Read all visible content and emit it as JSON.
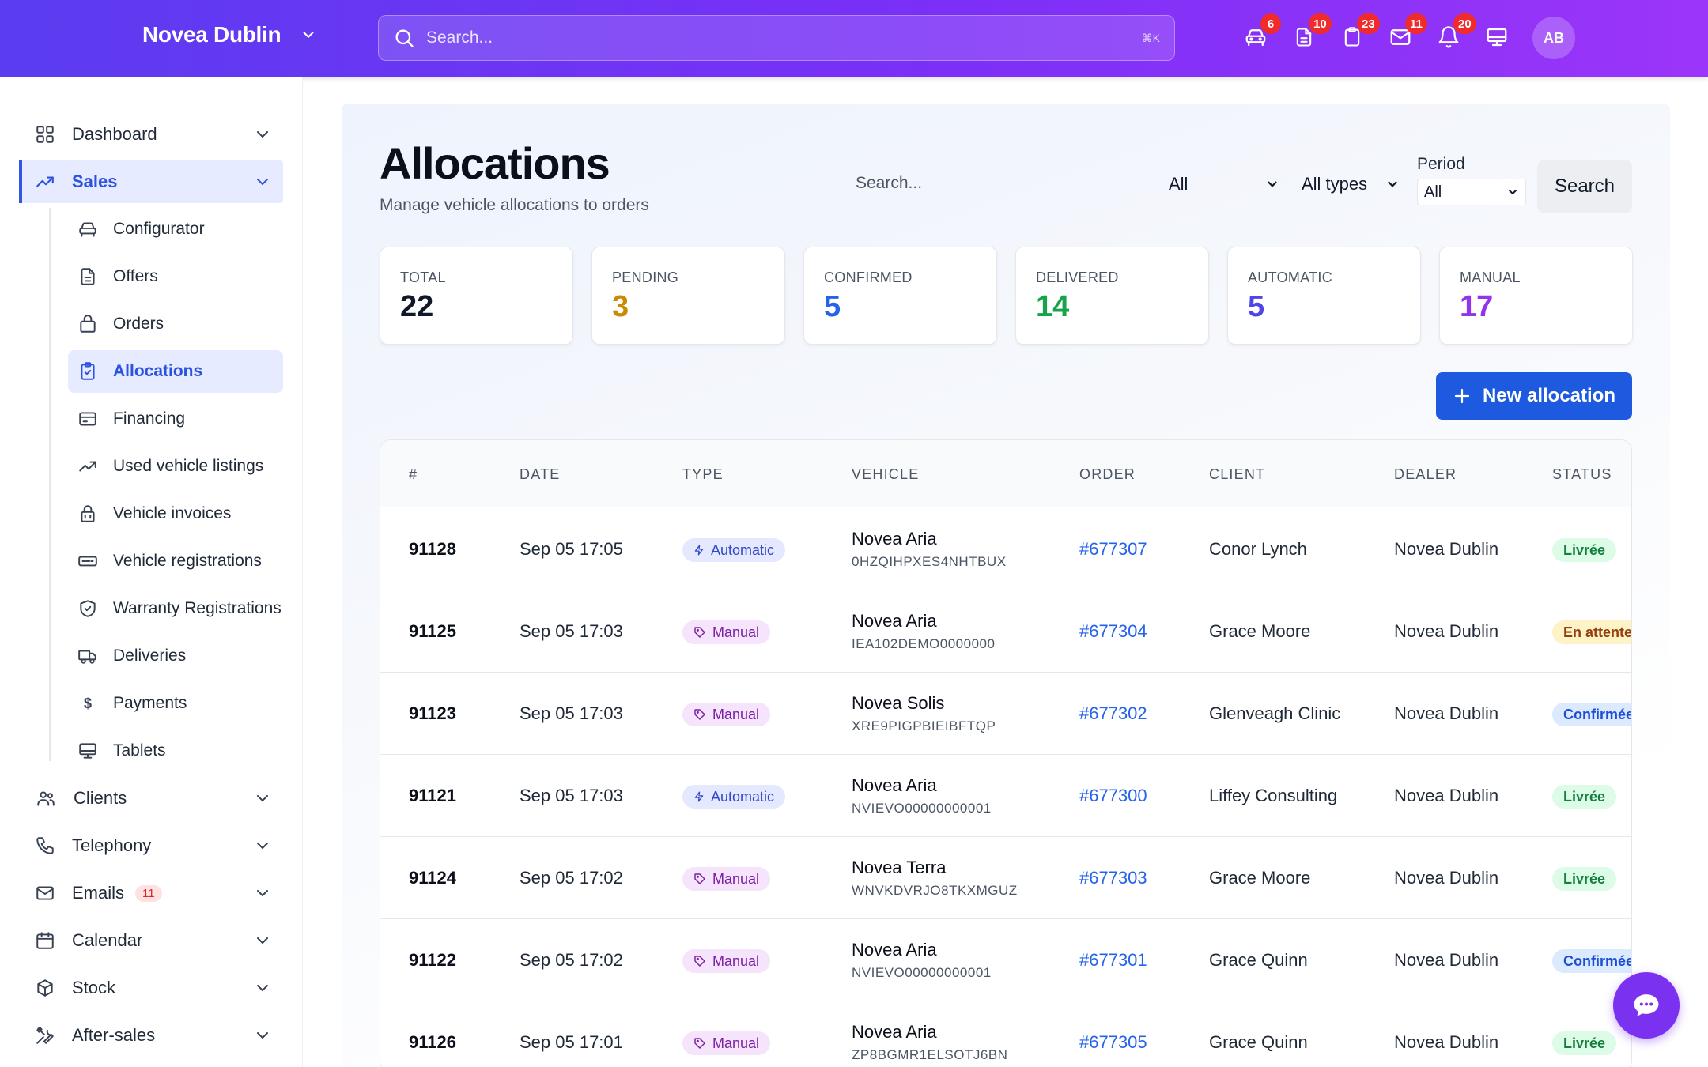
{
  "header": {
    "brand": "Novea Dublin",
    "search_placeholder": "Search...",
    "shortcut": "⌘K",
    "icons": [
      {
        "name": "car-icon",
        "badge": "6"
      },
      {
        "name": "document-icon",
        "badge": "10"
      },
      {
        "name": "clipboard-icon",
        "badge": "23"
      },
      {
        "name": "mail-icon",
        "badge": "11"
      },
      {
        "name": "bell-icon",
        "badge": "20"
      },
      {
        "name": "monitor-icon",
        "badge": ""
      }
    ],
    "avatar_initials": "AB"
  },
  "sidebar": {
    "items": [
      {
        "label": "Dashboard",
        "icon": "grid-icon"
      },
      {
        "label": "Sales",
        "icon": "trend-icon",
        "active": true
      },
      {
        "label": "Clients",
        "icon": "users-icon"
      },
      {
        "label": "Telephony",
        "icon": "phone-icon"
      },
      {
        "label": "Emails",
        "icon": "mail-icon",
        "badge": "11"
      },
      {
        "label": "Calendar",
        "icon": "calendar-icon"
      },
      {
        "label": "Stock",
        "icon": "box-icon"
      },
      {
        "label": "After-sales",
        "icon": "tools-icon"
      }
    ],
    "sales_subitems": [
      {
        "label": "Configurator",
        "icon": "car-icon"
      },
      {
        "label": "Offers",
        "icon": "document-icon"
      },
      {
        "label": "Orders",
        "icon": "bag-icon"
      },
      {
        "label": "Allocations",
        "icon": "clipboard-check-icon",
        "active": true
      },
      {
        "label": "Financing",
        "icon": "credit-card-icon"
      },
      {
        "label": "Used vehicle listings",
        "icon": "trend-icon"
      },
      {
        "label": "Vehicle invoices",
        "icon": "lock-bag-icon"
      },
      {
        "label": "Vehicle registrations",
        "icon": "plate-icon"
      },
      {
        "label": "Warranty Registrations",
        "icon": "shield-check-icon"
      },
      {
        "label": "Deliveries",
        "icon": "truck-icon"
      },
      {
        "label": "Payments",
        "icon": "dollar-icon"
      },
      {
        "label": "Tablets",
        "icon": "monitor-icon"
      }
    ]
  },
  "page": {
    "title": "Allocations",
    "subtitle": "Manage vehicle allocations to orders",
    "filters": {
      "search_placeholder": "Search...",
      "status_value": "All",
      "type_value": "All types",
      "period_label": "Period",
      "period_value": "All",
      "search_button": "Search"
    },
    "stats": [
      {
        "label": "TOTAL",
        "value": "22",
        "color": "#111827"
      },
      {
        "label": "PENDING",
        "value": "3",
        "color": "#ca8a04"
      },
      {
        "label": "CONFIRMED",
        "value": "5",
        "color": "#2563eb"
      },
      {
        "label": "DELIVERED",
        "value": "14",
        "color": "#16a34a"
      },
      {
        "label": "AUTOMATIC",
        "value": "5",
        "color": "#4f46e5"
      },
      {
        "label": "MANUAL",
        "value": "17",
        "color": "#9333ea"
      }
    ],
    "new_button": "New allocation"
  },
  "table": {
    "columns": [
      "#",
      "DATE",
      "TYPE",
      "VEHICLE",
      "ORDER",
      "CLIENT",
      "DEALER",
      "STATUS"
    ],
    "rows": [
      {
        "id": "91128",
        "date": "Sep 05 17:05",
        "type": "Automatic",
        "vehicle": "Novea Aria",
        "vin": "0HZQIHPXES4NHTBUX",
        "order": "#677307",
        "client": "Conor Lynch",
        "dealer": "Novea Dublin",
        "status": "Livrée"
      },
      {
        "id": "91125",
        "date": "Sep 05 17:03",
        "type": "Manual",
        "vehicle": "Novea Aria",
        "vin": "IEA102DEMO0000000",
        "order": "#677304",
        "client": "Grace Moore",
        "dealer": "Novea Dublin",
        "status": "En attente"
      },
      {
        "id": "91123",
        "date": "Sep 05 17:03",
        "type": "Manual",
        "vehicle": "Novea Solis",
        "vin": "XRE9PIGPBIEIBFTQP",
        "order": "#677302",
        "client": "Glenveagh Clinic",
        "dealer": "Novea Dublin",
        "status": "Confirmée"
      },
      {
        "id": "91121",
        "date": "Sep 05 17:03",
        "type": "Automatic",
        "vehicle": "Novea Aria",
        "vin": "NVIEVO00000000001",
        "order": "#677300",
        "client": "Liffey Consulting",
        "dealer": "Novea Dublin",
        "status": "Livrée"
      },
      {
        "id": "91124",
        "date": "Sep 05 17:02",
        "type": "Manual",
        "vehicle": "Novea Terra",
        "vin": "WNVKDVRJO8TKXMGUZ",
        "order": "#677303",
        "client": "Grace Moore",
        "dealer": "Novea Dublin",
        "status": "Livrée"
      },
      {
        "id": "91122",
        "date": "Sep 05 17:02",
        "type": "Manual",
        "vehicle": "Novea Aria",
        "vin": "NVIEVO00000000001",
        "order": "#677301",
        "client": "Grace Quinn",
        "dealer": "Novea Dublin",
        "status": "Confirmée"
      },
      {
        "id": "91126",
        "date": "Sep 05 17:01",
        "type": "Manual",
        "vehicle": "Novea Aria",
        "vin": "ZP8BGMR1ELSOTJ6BN",
        "order": "#677305",
        "client": "Grace Quinn",
        "dealer": "Novea Dublin",
        "status": "Livrée"
      }
    ]
  },
  "chat_icon": "chat-icon"
}
